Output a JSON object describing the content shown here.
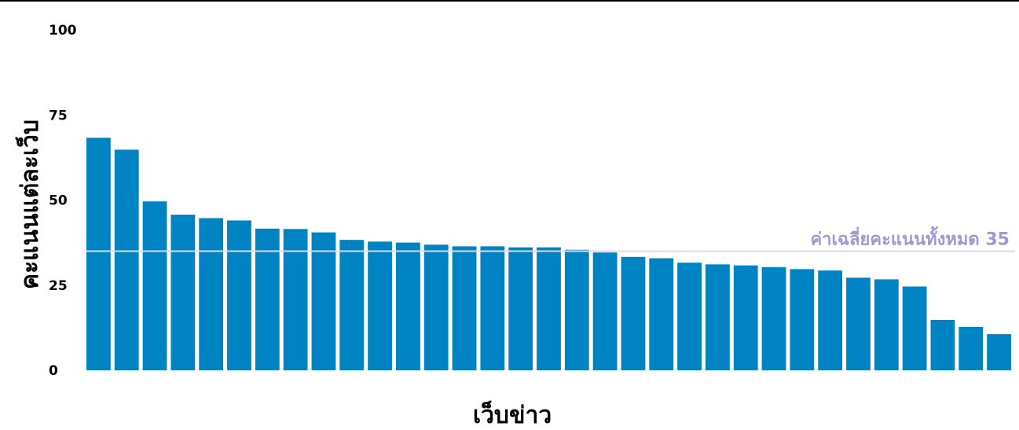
{
  "chart_data": {
    "type": "bar",
    "xlabel": "เว็บข่าว",
    "ylabel": "คะแนนแต่ละเว็บ",
    "ylim": [
      0,
      100
    ],
    "yticks": [
      0,
      25,
      50,
      75,
      100
    ],
    "values": [
      68.3,
      64.8,
      49.6,
      45.7,
      44.7,
      44.0,
      41.6,
      41.5,
      40.5,
      38.3,
      37.8,
      37.5,
      36.9,
      36.4,
      36.4,
      36.1,
      36.1,
      35.4,
      34.6,
      33.3,
      32.9,
      31.6,
      31.1,
      30.8,
      30.3,
      29.7,
      29.3,
      27.2,
      26.7,
      24.6,
      14.8,
      12.7,
      10.6
    ],
    "reference_line": {
      "value": 35,
      "label": "ค่าเฉลี่ยคะแนนทั้งหมด 35"
    },
    "colors": {
      "bar": "#0083c2",
      "reference_line": "#d9daf0",
      "reference_label": "#9a9ad0"
    },
    "grid": false
  }
}
